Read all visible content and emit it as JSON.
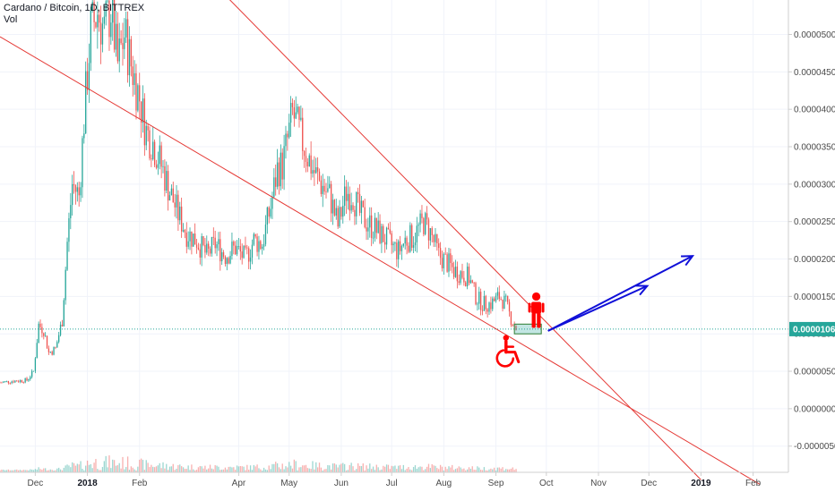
{
  "header": {
    "title": "Cardano / Bitcoin, 1D, BITTREX",
    "indicator": "Vol"
  },
  "colors": {
    "up": "#26a69a",
    "down": "#ef5350",
    "trend": "#e53935",
    "arrow": "#1010d8",
    "person": "#ff0000",
    "current_line": "#26a69a",
    "price_label_bg": "#26a69a"
  },
  "chart_data": {
    "type": "candlestick",
    "title": "Cardano / Bitcoin, 1D, BITTREX",
    "ylim": [
      -8.5e-06,
      5.46e-05
    ],
    "yticks": [
      "0.00005000",
      "0.00004500",
      "0.00004000",
      "0.00003500",
      "0.00003000",
      "0.00002500",
      "0.00002000",
      "0.00001500",
      "0.00001000",
      "0.00000500",
      "0.00000000",
      "-0.00000500"
    ],
    "ytick_values": [
      5e-05,
      4.5e-05,
      4e-05,
      3.5e-05,
      3e-05,
      2.5e-05,
      2e-05,
      1.5e-05,
      1e-05,
      5e-06,
      0,
      -5e-06
    ],
    "xlim": [
      "2017-11-10",
      "2019-02-22"
    ],
    "xticks": [
      {
        "label": "Dec",
        "date": "2017-12-01"
      },
      {
        "label": "2018",
        "date": "2018-01-01",
        "year": true
      },
      {
        "label": "Feb",
        "date": "2018-02-01"
      },
      {
        "label": "Apr",
        "date": "2018-04-01"
      },
      {
        "label": "May",
        "date": "2018-05-01"
      },
      {
        "label": "Jun",
        "date": "2018-06-01"
      },
      {
        "label": "Jul",
        "date": "2018-07-01"
      },
      {
        "label": "Aug",
        "date": "2018-08-01"
      },
      {
        "label": "Sep",
        "date": "2018-09-01"
      },
      {
        "label": "Oct",
        "date": "2018-10-01"
      },
      {
        "label": "Nov",
        "date": "2018-11-01"
      },
      {
        "label": "Dec",
        "date": "2018-12-01"
      },
      {
        "label": "2019",
        "date": "2019-01-01",
        "year": true
      },
      {
        "label": "Feb",
        "date": "2019-02-01"
      }
    ],
    "current_price": 1.063e-05,
    "current_price_label": "0.00001063",
    "close_path": [
      [
        "2017-11-10",
        3.5e-06
      ],
      [
        "2017-11-18",
        3.7e-06
      ],
      [
        "2017-11-26",
        3.8e-06
      ],
      [
        "2017-11-30",
        5e-06
      ],
      [
        "2017-12-03",
        1.12e-05
      ],
      [
        "2017-12-06",
        1.05e-05
      ],
      [
        "2017-12-09",
        7.5e-06
      ],
      [
        "2017-12-13",
        8e-06
      ],
      [
        "2017-12-17",
        1.18e-05
      ],
      [
        "2017-12-20",
        2.22e-05
      ],
      [
        "2017-12-23",
        3e-05
      ],
      [
        "2017-12-27",
        2.85e-05
      ],
      [
        "2017-12-31",
        4.2e-05
      ],
      [
        "2018-01-03",
        5.05e-05
      ],
      [
        "2018-01-07",
        5.3e-05
      ],
      [
        "2018-01-11",
        5.05e-05
      ],
      [
        "2018-01-15",
        5.35e-05
      ],
      [
        "2018-01-19",
        4.6e-05
      ],
      [
        "2018-01-23",
        5e-05
      ],
      [
        "2018-01-27",
        4.6e-05
      ],
      [
        "2018-02-01",
        4.15e-05
      ],
      [
        "2018-02-05",
        3.7e-05
      ],
      [
        "2018-02-09",
        3.55e-05
      ],
      [
        "2018-02-14",
        3.25e-05
      ],
      [
        "2018-02-19",
        2.9e-05
      ],
      [
        "2018-02-24",
        2.6e-05
      ],
      [
        "2018-03-01",
        2.35e-05
      ],
      [
        "2018-03-07",
        2.25e-05
      ],
      [
        "2018-03-13",
        2.05e-05
      ],
      [
        "2018-03-18",
        2.2e-05
      ],
      [
        "2018-03-24",
        2.05e-05
      ],
      [
        "2018-03-30",
        2.15e-05
      ],
      [
        "2018-04-05",
        2e-05
      ],
      [
        "2018-04-10",
        2.25e-05
      ],
      [
        "2018-04-15",
        2.2e-05
      ],
      [
        "2018-04-20",
        2.7e-05
      ],
      [
        "2018-04-24",
        3.2e-05
      ],
      [
        "2018-04-27",
        3.25e-05
      ],
      [
        "2018-05-01",
        3.7e-05
      ],
      [
        "2018-05-03",
        3.95e-05
      ],
      [
        "2018-05-06",
        3.75e-05
      ],
      [
        "2018-05-10",
        3.5e-05
      ],
      [
        "2018-05-15",
        3.2e-05
      ],
      [
        "2018-05-20",
        3e-05
      ],
      [
        "2018-05-25",
        2.85e-05
      ],
      [
        "2018-05-30",
        2.45e-05
      ],
      [
        "2018-06-04",
        2.9e-05
      ],
      [
        "2018-06-08",
        2.85e-05
      ],
      [
        "2018-06-12",
        2.6e-05
      ],
      [
        "2018-06-16",
        2.5e-05
      ],
      [
        "2018-06-21",
        2.4e-05
      ],
      [
        "2018-06-26",
        2.3e-05
      ],
      [
        "2018-06-30",
        2.2e-05
      ],
      [
        "2018-07-05",
        2.1e-05
      ],
      [
        "2018-07-09",
        2.25e-05
      ],
      [
        "2018-07-14",
        2.3e-05
      ],
      [
        "2018-07-20",
        2.5e-05
      ],
      [
        "2018-07-24",
        2.35e-05
      ],
      [
        "2018-07-29",
        2.05e-05
      ],
      [
        "2018-08-03",
        1.95e-05
      ],
      [
        "2018-08-07",
        1.85e-05
      ],
      [
        "2018-08-12",
        1.8e-05
      ],
      [
        "2018-08-16",
        1.75e-05
      ],
      [
        "2018-08-20",
        1.5e-05
      ],
      [
        "2018-08-24",
        1.4e-05
      ],
      [
        "2018-08-29",
        1.4e-05
      ],
      [
        "2018-09-03",
        1.5e-05
      ],
      [
        "2018-09-07",
        1.4e-05
      ],
      [
        "2018-09-10",
        1.2e-05
      ],
      [
        "2018-09-13",
        1.08e-05
      ]
    ],
    "trendlines": [
      {
        "name": "upper-trendline",
        "from": [
          "2018-01-01",
          7.4e-05
        ],
        "to": [
          "2019-01-01",
          -9.5e-06
        ]
      },
      {
        "name": "lower-trendline",
        "from": [
          "2017-11-10",
          4.97e-05
        ],
        "to": [
          "2019-02-05",
          -1.01e-05
        ]
      }
    ],
    "box": {
      "from": [
        "2018-09-12",
        1.13e-05
      ],
      "to": [
        "2018-09-28",
        1e-05
      ]
    },
    "arrows": [
      {
        "from": [
          "2018-10-02",
          1.04e-05
        ],
        "to": [
          "2018-12-27",
          2.04e-05
        ]
      },
      {
        "from": [
          "2018-10-02",
          1.04e-05
        ],
        "to": [
          "2018-11-30",
          1.64e-05
        ]
      }
    ],
    "annotations": [
      {
        "icon": "wheelchair-icon",
        "at": [
          "2018-09-07",
          7.2e-06
        ]
      },
      {
        "icon": "standing-person-icon",
        "at": [
          "2018-09-25",
          1.26e-05
        ]
      }
    ]
  }
}
